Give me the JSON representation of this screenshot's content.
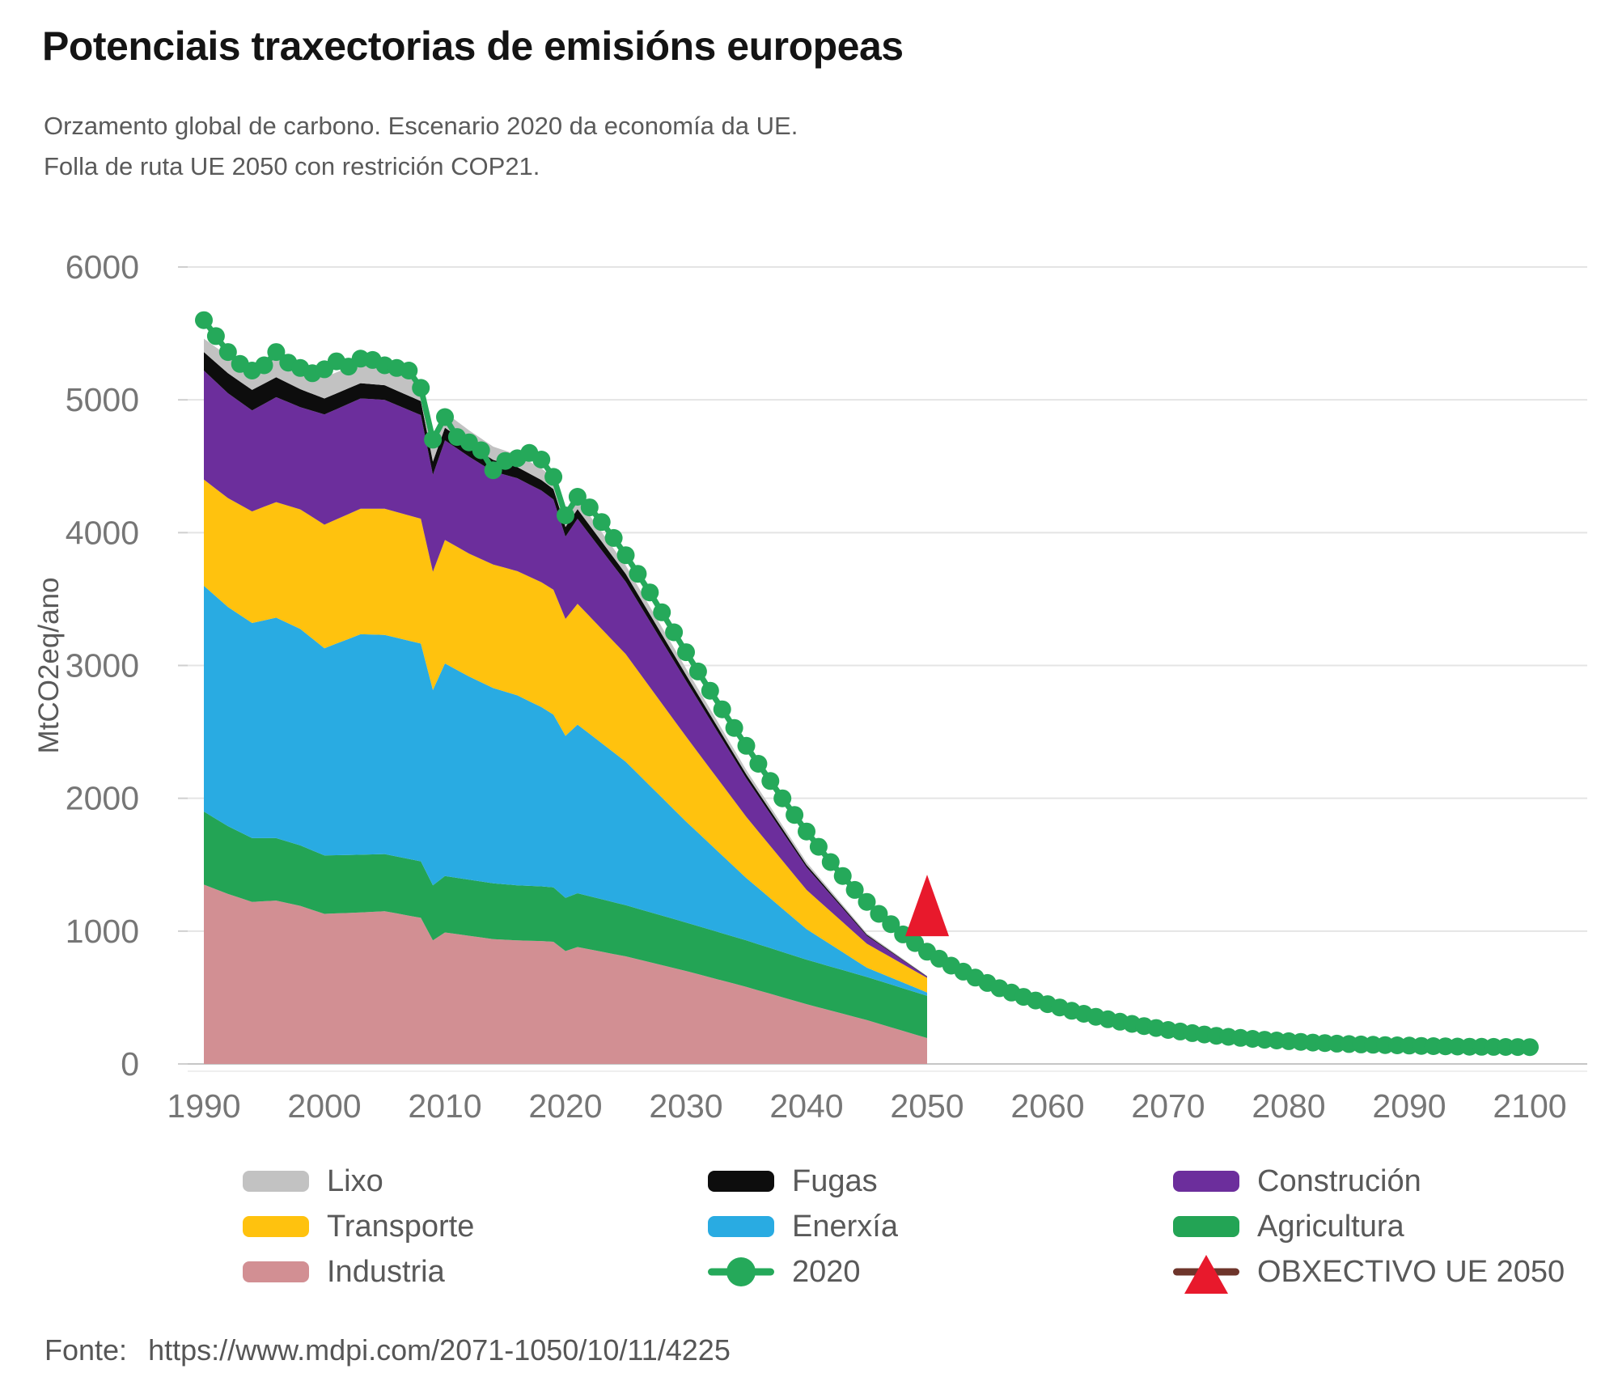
{
  "header": {
    "title": "Potenciais traxectorias de emisións europeas"
  },
  "footer": {
    "source_label": "Fonte:",
    "source_url": "https://www.mdpi.com/2071-1050/10/11/4225"
  },
  "chart_data": {
    "type": "area",
    "title": "Potenciais traxectorias de emisións europeas",
    "subtitle_lines": [
      "Orzamento global de carbono. Escenario 2020 da economía da UE.",
      "Folla de ruta UE 2050 con restrición COP21."
    ],
    "xlabel": "",
    "ylabel": "MtCO2eq/ano",
    "ylim": [
      0,
      6000
    ],
    "xlim": [
      1990,
      2100
    ],
    "y_ticks": [
      0,
      1000,
      2000,
      3000,
      4000,
      5000,
      6000
    ],
    "x_ticks": [
      1990,
      2000,
      2010,
      2020,
      2030,
      2040,
      2050,
      2060,
      2070,
      2080,
      2090,
      2100
    ],
    "grid": true,
    "legend_position": "bottom",
    "stack_end_year": 2050,
    "anchor_years": [
      1990,
      1992,
      1994,
      1996,
      1998,
      2000,
      2003,
      2005,
      2008,
      2009,
      2010,
      2012,
      2014,
      2016,
      2018,
      2019,
      2020,
      2021,
      2025,
      2030,
      2035,
      2040,
      2045,
      2050
    ],
    "series": [
      {
        "name": "Industria",
        "color": "#D28F93",
        "values": [
          1350,
          1280,
          1220,
          1230,
          1190,
          1130,
          1140,
          1150,
          1100,
          930,
          990,
          965,
          940,
          930,
          925,
          920,
          850,
          880,
          810,
          700,
          580,
          450,
          330,
          195
        ]
      },
      {
        "name": "Agricultura",
        "color": "#23A455",
        "values": [
          550,
          510,
          480,
          470,
          455,
          440,
          435,
          430,
          425,
          415,
          425,
          422,
          420,
          415,
          412,
          410,
          400,
          405,
          385,
          365,
          350,
          335,
          325,
          318
        ]
      },
      {
        "name": "Enerxía",
        "color": "#29ABE2",
        "values": [
          1700,
          1650,
          1620,
          1660,
          1630,
          1560,
          1660,
          1650,
          1640,
          1470,
          1600,
          1530,
          1470,
          1430,
          1350,
          1300,
          1220,
          1270,
          1080,
          760,
          470,
          230,
          70,
          25
        ]
      },
      {
        "name": "Transporte",
        "color": "#FFC20E",
        "values": [
          800,
          820,
          840,
          870,
          900,
          930,
          945,
          950,
          940,
          890,
          930,
          925,
          930,
          935,
          940,
          940,
          880,
          910,
          810,
          640,
          460,
          295,
          180,
          110
        ]
      },
      {
        "name": "Construción",
        "color": "#6C2E9C",
        "values": [
          820,
          790,
          760,
          790,
          770,
          830,
          830,
          820,
          780,
          730,
          750,
          730,
          700,
          700,
          690,
          680,
          620,
          640,
          545,
          420,
          290,
          170,
          60,
          8
        ]
      },
      {
        "name": "Fugas",
        "color": "#0D0D0D",
        "values": [
          140,
          150,
          155,
          150,
          135,
          120,
          115,
          110,
          105,
          100,
          95,
          90,
          88,
          84,
          80,
          78,
          72,
          72,
          60,
          45,
          30,
          18,
          8,
          3
        ]
      },
      {
        "name": "Lixo",
        "color": "#C2C2C2",
        "values": [
          100,
          130,
          150,
          155,
          158,
          160,
          155,
          150,
          130,
          120,
          115,
          108,
          100,
          92,
          87,
          85,
          80,
          78,
          64,
          48,
          33,
          20,
          10,
          4
        ]
      }
    ],
    "line_2020": {
      "name": "2020",
      "color": "#25A95A",
      "points": [
        [
          1990,
          5600
        ],
        [
          1991,
          5480
        ],
        [
          1992,
          5360
        ],
        [
          1993,
          5270
        ],
        [
          1994,
          5220
        ],
        [
          1995,
          5260
        ],
        [
          1996,
          5360
        ],
        [
          1997,
          5280
        ],
        [
          1998,
          5240
        ],
        [
          1999,
          5200
        ],
        [
          2000,
          5230
        ],
        [
          2001,
          5290
        ],
        [
          2002,
          5250
        ],
        [
          2003,
          5310
        ],
        [
          2004,
          5300
        ],
        [
          2005,
          5260
        ],
        [
          2006,
          5240
        ],
        [
          2007,
          5220
        ],
        [
          2008,
          5090
        ],
        [
          2009,
          4700
        ],
        [
          2010,
          4870
        ],
        [
          2011,
          4720
        ],
        [
          2012,
          4680
        ],
        [
          2013,
          4620
        ],
        [
          2014,
          4470
        ],
        [
          2015,
          4540
        ],
        [
          2016,
          4560
        ],
        [
          2017,
          4600
        ],
        [
          2018,
          4550
        ],
        [
          2019,
          4420
        ],
        [
          2020,
          4130
        ],
        [
          2021,
          4270
        ],
        [
          2022,
          4190
        ],
        [
          2023,
          4080
        ],
        [
          2024,
          3960
        ],
        [
          2025,
          3830
        ],
        [
          2026,
          3690
        ],
        [
          2027,
          3550
        ],
        [
          2028,
          3400
        ],
        [
          2029,
          3250
        ],
        [
          2030,
          3100
        ],
        [
          2032,
          2810
        ],
        [
          2034,
          2530
        ],
        [
          2036,
          2260
        ],
        [
          2038,
          2000
        ],
        [
          2040,
          1750
        ],
        [
          2042,
          1520
        ],
        [
          2044,
          1310
        ],
        [
          2046,
          1130
        ],
        [
          2048,
          975
        ],
        [
          2050,
          845
        ],
        [
          2052,
          740
        ],
        [
          2054,
          650
        ],
        [
          2056,
          570
        ],
        [
          2058,
          505
        ],
        [
          2060,
          450
        ],
        [
          2062,
          400
        ],
        [
          2064,
          355
        ],
        [
          2066,
          318
        ],
        [
          2068,
          285
        ],
        [
          2070,
          256
        ],
        [
          2072,
          232
        ],
        [
          2074,
          212
        ],
        [
          2076,
          196
        ],
        [
          2078,
          182
        ],
        [
          2080,
          171
        ],
        [
          2082,
          161
        ],
        [
          2084,
          153
        ],
        [
          2086,
          147
        ],
        [
          2088,
          142
        ],
        [
          2090,
          138
        ],
        [
          2092,
          134
        ],
        [
          2094,
          131
        ],
        [
          2096,
          129
        ],
        [
          2098,
          128
        ],
        [
          2100,
          127
        ]
      ]
    },
    "target_marker": {
      "label": "OBXECTIVO UE 2050",
      "year": 2050,
      "value": 1120,
      "color": "#E8192C",
      "line_color": "#6E352B"
    },
    "legend": [
      {
        "label": "Lixo",
        "type": "swatch",
        "color": "#C2C2C2"
      },
      {
        "label": "Transporte",
        "type": "swatch",
        "color": "#FFC20E"
      },
      {
        "label": "Industria",
        "type": "swatch",
        "color": "#D28F93"
      },
      {
        "label": "Fugas",
        "type": "swatch",
        "color": "#0D0D0D"
      },
      {
        "label": "Enerxía",
        "type": "swatch",
        "color": "#29ABE2"
      },
      {
        "label": "2020",
        "type": "line-dot",
        "color": "#25A95A"
      },
      {
        "label": "Construción",
        "type": "swatch",
        "color": "#6C2E9C"
      },
      {
        "label": "Agricultura",
        "type": "swatch",
        "color": "#23A455"
      },
      {
        "label": "OBXECTIVO UE 2050",
        "type": "triangle-line",
        "color": "#E8192C",
        "line_color": "#6E352B"
      }
    ]
  }
}
